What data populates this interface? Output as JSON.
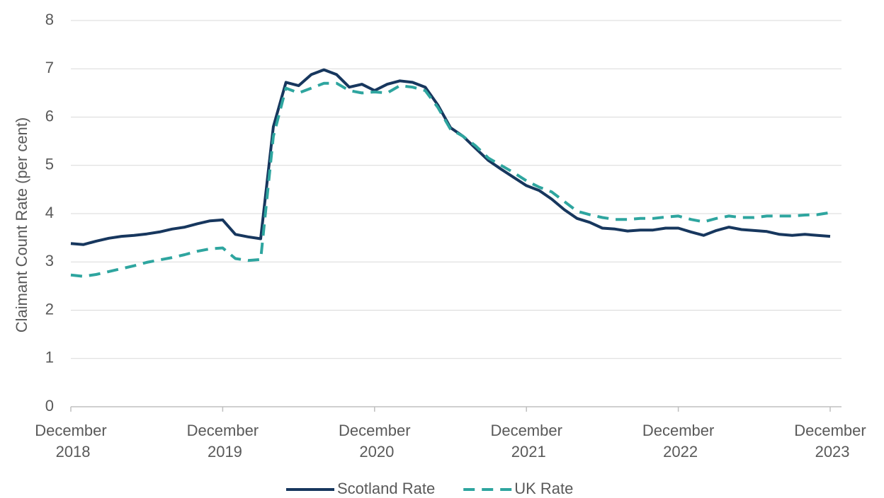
{
  "chart_data": {
    "type": "line",
    "y_label": "Claimant Count Rate (per cent)",
    "categories": [
      "December 2018",
      null,
      null,
      null,
      null,
      null,
      null,
      null,
      null,
      null,
      null,
      null,
      "December 2019",
      null,
      null,
      null,
      null,
      null,
      null,
      null,
      null,
      null,
      null,
      null,
      "December 2020",
      null,
      null,
      null,
      null,
      null,
      null,
      null,
      null,
      null,
      null,
      null,
      "December 2021",
      null,
      null,
      null,
      null,
      null,
      null,
      null,
      null,
      null,
      null,
      null,
      "December 2022",
      null,
      null,
      null,
      null,
      null,
      null,
      null,
      null,
      null,
      null,
      null,
      "December 2023"
    ],
    "series": [
      {
        "name": "Scotland Rate",
        "color": "#17375e",
        "dash": false,
        "values": [
          3.38,
          3.36,
          3.43,
          3.49,
          3.53,
          3.55,
          3.58,
          3.62,
          3.68,
          3.72,
          3.79,
          3.85,
          3.87,
          3.57,
          3.52,
          3.48,
          5.8,
          6.72,
          6.65,
          6.88,
          6.98,
          6.88,
          6.62,
          6.68,
          6.55,
          6.68,
          6.75,
          6.72,
          6.62,
          6.25,
          5.78,
          5.6,
          5.35,
          5.1,
          4.92,
          4.75,
          4.58,
          4.48,
          4.3,
          4.08,
          3.9,
          3.82,
          3.7,
          3.68,
          3.64,
          3.66,
          3.66,
          3.7,
          3.7,
          3.62,
          3.55,
          3.65,
          3.72,
          3.67,
          3.65,
          3.63,
          3.57,
          3.55,
          3.57,
          3.55,
          3.53
        ]
      },
      {
        "name": "UK Rate",
        "color": "#2ea59f",
        "dash": true,
        "values": [
          2.73,
          2.7,
          2.74,
          2.8,
          2.86,
          2.92,
          2.99,
          3.04,
          3.09,
          3.15,
          3.22,
          3.27,
          3.29,
          3.07,
          3.03,
          3.05,
          5.6,
          6.6,
          6.5,
          6.6,
          6.7,
          6.7,
          6.55,
          6.5,
          6.52,
          6.5,
          6.65,
          6.62,
          6.55,
          6.2,
          5.75,
          5.6,
          5.4,
          5.15,
          5.0,
          4.85,
          4.68,
          4.55,
          4.45,
          4.25,
          4.05,
          3.98,
          3.92,
          3.88,
          3.88,
          3.9,
          3.9,
          3.93,
          3.95,
          3.88,
          3.83,
          3.9,
          3.95,
          3.92,
          3.92,
          3.95,
          3.95,
          3.95,
          3.97,
          3.98,
          4.02
        ]
      }
    ],
    "ylim": [
      0,
      8
    ],
    "yticks": [
      0,
      1,
      2,
      3,
      4,
      5,
      6,
      7,
      8
    ],
    "grid": true,
    "legend": "bottom"
  }
}
